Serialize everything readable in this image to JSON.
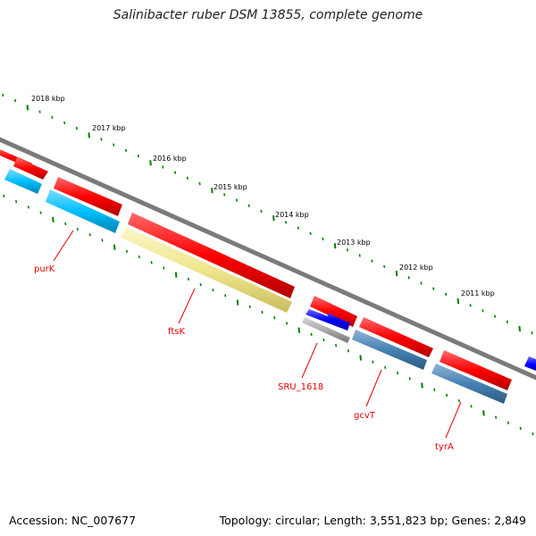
{
  "title": "Salinibacter ruber DSM 13855, complete genome",
  "footer": {
    "accession_label": "Accession:",
    "accession": "NC_007677",
    "topology_label": "Topology:",
    "topology": "circular",
    "length_label": "Length:",
    "length": "3,551,823 bp",
    "genes_label": "Genes:",
    "genes": "2,849"
  },
  "kbp_labels": [
    "2018 kbp",
    "2017 kbp",
    "2016 kbp",
    "2015 kbp",
    "2014 kbp",
    "2013 kbp",
    "2012 kbp",
    "2011 kbp"
  ],
  "gene_labels": [
    "purK",
    "ftsK",
    "SRU_1618",
    "gcvT",
    "tyrA"
  ],
  "colors": {
    "forward_gene": "#ff0000",
    "reverse_gene_cyan": "#00bfff",
    "reverse_gene_steel": "#4682b4",
    "reverse_gene_khaki": "#f0e68c",
    "blue_gene": "#0000ff",
    "grey_gene": "#a9a9a9",
    "backbone": "#808080",
    "tick": "#008000",
    "label": "#e60000"
  }
}
